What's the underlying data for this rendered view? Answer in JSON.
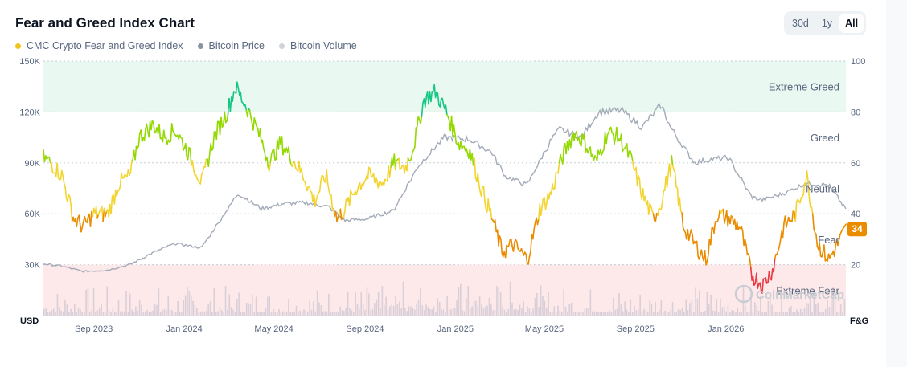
{
  "chart_data": {
    "type": "line",
    "title": "Fear and Greed Index Chart",
    "legend": [
      {
        "name": "CMC Crypto Fear and Greed Index",
        "color": "#f0c419"
      },
      {
        "name": "Bitcoin Price",
        "color": "#8a93a3"
      },
      {
        "name": "Bitcoin Volume",
        "color": "#cfd3da"
      }
    ],
    "legend_placement": "top-left",
    "range_buttons": [
      {
        "label": "30d",
        "active": false
      },
      {
        "label": "1y",
        "active": false
      },
      {
        "label": "All",
        "active": true
      }
    ],
    "left_axis": {
      "unit": "USD",
      "ticks": [
        "150K",
        "120K",
        "90K",
        "60K",
        "30K"
      ],
      "tick_values": [
        150000,
        120000,
        90000,
        60000,
        30000
      ],
      "range": [
        0,
        150000
      ]
    },
    "right_axis": {
      "unit": "F&G",
      "ticks": [
        "100",
        "80",
        "60",
        "40",
        "20"
      ],
      "tick_values": [
        100,
        80,
        60,
        40,
        20
      ],
      "range": [
        0,
        100
      ]
    },
    "x_range": [
      "2023-06-25",
      "2026-06-12"
    ],
    "x_ticks": [
      {
        "label": "Sep 2023",
        "date": "2023-09-01"
      },
      {
        "label": "Jan 2024",
        "date": "2024-01-01"
      },
      {
        "label": "May 2024",
        "date": "2024-05-01"
      },
      {
        "label": "Sep 2024",
        "date": "2024-09-01"
      },
      {
        "label": "Jan 2025",
        "date": "2025-01-01"
      },
      {
        "label": "May 2025",
        "date": "2025-05-01"
      },
      {
        "label": "Sep 2025",
        "date": "2025-09-01"
      },
      {
        "label": "Jan 2026",
        "date": "2026-01-01"
      }
    ],
    "zones": [
      {
        "label": "Extreme Greed",
        "from": 80,
        "to": 100,
        "color": "#e9f8f1"
      },
      {
        "label": "Greed",
        "from": 60,
        "to": 80
      },
      {
        "label": "Neutral",
        "from": 40,
        "to": 60
      },
      {
        "label": "Fear",
        "from": 20,
        "to": 40
      },
      {
        "label": "Extreme Fear",
        "from": 0,
        "to": 20,
        "color": "#fde9ea"
      }
    ],
    "grid": true,
    "current_value": "34",
    "watermark": "CoinMarketCap",
    "series": [
      {
        "name": "CMC Crypto Fear and Greed Index",
        "axis": "right",
        "x": [
          "2023-06-25",
          "2023-07-05",
          "2023-07-20",
          "2023-08-05",
          "2023-08-18",
          "2023-09-01",
          "2023-09-20",
          "2023-10-05",
          "2023-10-20",
          "2023-11-01",
          "2023-11-20",
          "2023-12-05",
          "2023-12-20",
          "2024-01-05",
          "2024-01-25",
          "2024-02-10",
          "2024-02-28",
          "2024-03-10",
          "2024-03-25",
          "2024-04-10",
          "2024-04-25",
          "2024-05-10",
          "2024-05-25",
          "2024-06-10",
          "2024-06-25",
          "2024-07-10",
          "2024-07-25",
          "2024-08-05",
          "2024-08-20",
          "2024-09-05",
          "2024-09-25",
          "2024-10-10",
          "2024-10-25",
          "2024-11-05",
          "2024-11-20",
          "2024-12-05",
          "2024-12-20",
          "2025-01-05",
          "2025-01-20",
          "2025-02-05",
          "2025-02-20",
          "2025-03-05",
          "2025-03-20",
          "2025-04-08",
          "2025-04-25",
          "2025-05-10",
          "2025-05-25",
          "2025-06-10",
          "2025-06-25",
          "2025-07-10",
          "2025-07-25",
          "2025-08-10",
          "2025-08-25",
          "2025-09-10",
          "2025-09-25",
          "2025-10-05",
          "2025-10-20",
          "2025-11-05",
          "2025-11-20",
          "2025-12-05",
          "2025-12-20",
          "2026-01-05",
          "2026-01-20",
          "2026-02-05",
          "2026-02-20",
          "2026-03-05",
          "2026-03-20",
          "2026-04-05",
          "2026-04-20",
          "2026-05-05",
          "2026-05-20",
          "2026-06-12"
        ],
        "values": [
          62,
          60,
          55,
          38,
          35,
          40,
          40,
          52,
          55,
          70,
          75,
          70,
          73,
          65,
          52,
          70,
          80,
          90,
          82,
          72,
          60,
          68,
          62,
          55,
          45,
          55,
          38,
          42,
          50,
          55,
          52,
          60,
          58,
          66,
          85,
          88,
          80,
          68,
          65,
          50,
          38,
          25,
          28,
          22,
          42,
          48,
          62,
          72,
          68,
          60,
          72,
          70,
          62,
          48,
          38,
          44,
          60,
          35,
          28,
          22,
          40,
          38,
          35,
          16,
          12,
          18,
          35,
          40,
          55,
          28,
          22,
          34
        ]
      },
      {
        "name": "Bitcoin Price",
        "axis": "left",
        "x": [
          "2023-06-25",
          "2023-07-20",
          "2023-08-18",
          "2023-09-20",
          "2023-10-20",
          "2023-11-20",
          "2023-12-20",
          "2024-01-25",
          "2024-02-28",
          "2024-03-14",
          "2024-04-15",
          "2024-05-15",
          "2024-06-15",
          "2024-07-15",
          "2024-08-05",
          "2024-09-05",
          "2024-10-10",
          "2024-11-12",
          "2024-12-17",
          "2025-01-20",
          "2025-02-20",
          "2025-03-10",
          "2025-04-08",
          "2025-05-10",
          "2025-05-22",
          "2025-06-20",
          "2025-07-14",
          "2025-08-14",
          "2025-09-10",
          "2025-10-06",
          "2025-10-20",
          "2025-11-20",
          "2025-12-10",
          "2026-01-05",
          "2026-02-05",
          "2026-02-20",
          "2026-03-20",
          "2026-04-20",
          "2026-05-20",
          "2026-06-12"
        ],
        "values": [
          30500,
          29200,
          26000,
          26800,
          30000,
          37000,
          42500,
          40000,
          62000,
          72000,
          63000,
          66000,
          66500,
          64000,
          56000,
          57000,
          62000,
          88000,
          105000,
          104000,
          96000,
          82000,
          77000,
          103000,
          110000,
          105000,
          120000,
          121000,
          111000,
          124000,
          110000,
          90000,
          92000,
          93000,
          70000,
          68000,
          72000,
          78000,
          77000,
          63000
        ]
      },
      {
        "name": "Bitcoin Volume",
        "axis": "left"
      }
    ]
  }
}
